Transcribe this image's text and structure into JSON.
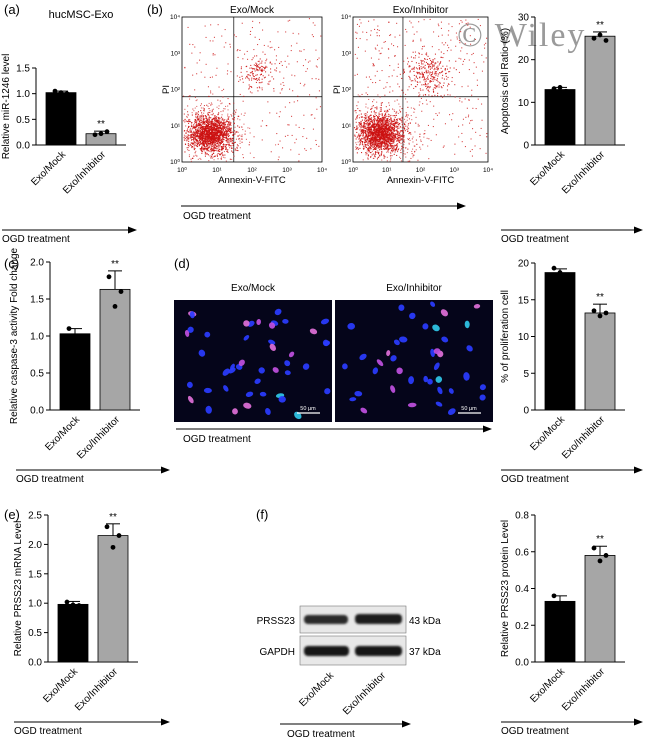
{
  "watermark": "© Wiley",
  "bar_colors": {
    "mock": "#000000",
    "inhibitor": "#a6a6a6"
  },
  "dot_color": "#cc1111",
  "panels": {
    "a": {
      "label": "(a)"
    },
    "b": {
      "label": "(b)",
      "plots": [
        {
          "title": "Exo/Mock",
          "xlabel": "Annexin-V-FITC",
          "ylabel": "PI"
        },
        {
          "title": "Exo/Inhibitor",
          "xlabel": "Annexin-V-FITC",
          "ylabel": "PI"
        }
      ],
      "xticks": [
        "10⁰",
        "10¹",
        "10²",
        "10³",
        "10⁴"
      ],
      "yticks": [
        "10⁰",
        "10¹",
        "10²",
        "10³",
        "10⁴"
      ],
      "treatment": "OGD treatment"
    },
    "c": {
      "label": "(c)"
    },
    "d": {
      "label": "(d)",
      "images": [
        {
          "title": "Exo/Mock",
          "scale": "50 μm"
        },
        {
          "title": "Exo/Inhibitor",
          "scale": "50 μm"
        }
      ],
      "treatment": "OGD treatment"
    },
    "e": {
      "label": "(e)"
    },
    "f": {
      "label": "(f)",
      "blot": [
        {
          "protein": "PRSS23",
          "size": "43 kDa"
        },
        {
          "protein": "GAPDH",
          "size": "37 kDa"
        }
      ],
      "categories": [
        "Exo/Mock",
        "Exo/Inhibitor"
      ],
      "treatment": "OGD treatment"
    }
  },
  "chart_data": [
    {
      "type": "bar",
      "panel": "a",
      "title": "hucMSC-Exo",
      "categories": [
        "Exo/Mock",
        "Exo/Inhibitor"
      ],
      "values": [
        1.02,
        0.22
      ],
      "errors": [
        0.03,
        0.05
      ],
      "points": [
        [
          1.05,
          1.02,
          1.0
        ],
        [
          0.2,
          0.22,
          0.26
        ]
      ],
      "ylabel": "Relative miR-1246 level",
      "ylim": [
        0,
        1.5
      ],
      "yticks": [
        "0.0",
        "0.5",
        "1.0",
        "1.5"
      ],
      "significance": "**",
      "xlabel": "OGD treatment"
    },
    {
      "type": "bar",
      "panel": "b",
      "categories": [
        "Exo/Mock",
        "Exo/Inhibitor"
      ],
      "values": [
        13,
        25.5
      ],
      "errors": [
        0.5,
        1.0
      ],
      "points": [
        [
          13.2,
          13.5,
          12.6
        ],
        [
          25.0,
          25.8,
          24.5
        ]
      ],
      "ylabel": "Apoptosis cell Ratio (%)",
      "ylim": [
        0,
        30
      ],
      "yticks": [
        "0",
        "10",
        "20",
        "30"
      ],
      "significance": "**",
      "xlabel": "OGD treatment"
    },
    {
      "type": "bar",
      "panel": "c",
      "categories": [
        "Exo/Mock",
        "Exo/Inhibitor"
      ],
      "values": [
        1.03,
        1.63
      ],
      "errors": [
        0.07,
        0.25
      ],
      "points": [
        [
          1.1,
          1.0,
          1.0
        ],
        [
          1.8,
          1.4,
          1.6
        ]
      ],
      "ylabel": "Relative caspase-3 activity Fold change",
      "ylim": [
        0,
        2.0
      ],
      "yticks": [
        "0.0",
        "0.5",
        "1.0",
        "1.5",
        "2.0"
      ],
      "significance": "**",
      "xlabel": "OGD treatment"
    },
    {
      "type": "bar",
      "panel": "d",
      "categories": [
        "Exo/Mock",
        "Exo/Inhibitor"
      ],
      "values": [
        18.7,
        13.2
      ],
      "errors": [
        0.5,
        1.2
      ],
      "points": [
        [
          19.3,
          18.7,
          18.3
        ],
        [
          13.5,
          12.8,
          13.2
        ]
      ],
      "ylabel": "% of proliferation cell",
      "ylim": [
        0,
        20
      ],
      "yticks": [
        "0",
        "5",
        "10",
        "15",
        "20"
      ],
      "significance": "**",
      "xlabel": "OGD treatment"
    },
    {
      "type": "bar",
      "panel": "e",
      "categories": [
        "Exo/Mock",
        "Exo/Inhibitor"
      ],
      "values": [
        0.98,
        2.15
      ],
      "errors": [
        0.05,
        0.2
      ],
      "points": [
        [
          1.02,
          0.97,
          0.96
        ],
        [
          2.3,
          1.95,
          2.15
        ]
      ],
      "ylabel": "Relative PRSS23 mRNA Level",
      "ylim": [
        0,
        2.5
      ],
      "yticks": [
        "0.0",
        "0.5",
        "1.0",
        "1.5",
        "2.0",
        "2.5"
      ],
      "significance": "**",
      "xlabel": "OGD treatment"
    },
    {
      "type": "bar",
      "panel": "f",
      "categories": [
        "Exo/Mock",
        "Exo/Inhibitor"
      ],
      "values": [
        0.33,
        0.58
      ],
      "errors": [
        0.03,
        0.05
      ],
      "points": [
        [
          0.36,
          0.32,
          0.31
        ],
        [
          0.62,
          0.55,
          0.58
        ]
      ],
      "ylabel": "Relative PRSS23 protein Level",
      "ylim": [
        0,
        0.8
      ],
      "yticks": [
        "0.0",
        "0.2",
        "0.4",
        "0.6",
        "0.8"
      ],
      "significance": "**",
      "xlabel": "OGD treatment"
    }
  ]
}
